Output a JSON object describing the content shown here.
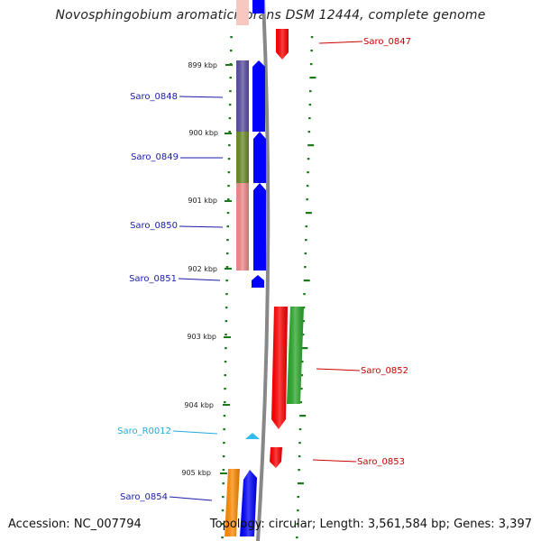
{
  "title": "Novosphingobium aromaticivorans DSM 12444, complete genome",
  "footer": {
    "accession": "Accession: NC_007794",
    "topology": "Topology: circular; Length: 3,561,584 bp; Genes: 3,397"
  },
  "colors": {
    "tick": "#1a7a1a",
    "label_blue": "#1a1aaa",
    "label_red": "#cc0000",
    "label_cyan": "#22aadd",
    "backbone": "#888888"
  },
  "scale": {
    "ticks": [
      "899 kbp",
      "900 kbp",
      "901 kbp",
      "902 kbp",
      "903 kbp",
      "904 kbp",
      "905 kbp"
    ]
  },
  "genes": [
    {
      "name": "Saro_0847",
      "strand": "+",
      "color": "#ff0000",
      "label_color": "#cc0000"
    },
    {
      "name": "Saro_0848",
      "strand": "-",
      "color": "#5b4fa0",
      "label_color": "#1a1aaa"
    },
    {
      "name": "Saro_0849",
      "strand": "-",
      "color": "#6e8a2a",
      "label_color": "#1a1aaa"
    },
    {
      "name": "Saro_0850",
      "strand": "-",
      "color": "#f08a8a",
      "label_color": "#1a1aaa"
    },
    {
      "name": "Saro_0851",
      "strand": "-",
      "color": "#0000ff",
      "label_color": "#1a1aaa"
    },
    {
      "name": "Saro_0852",
      "strand": "+",
      "color": "#ff0000",
      "label_color": "#cc0000"
    },
    {
      "name": "Saro_R0012",
      "strand": "-",
      "color": "#33bbee",
      "label_color": "#22aadd"
    },
    {
      "name": "Saro_0853",
      "strand": "+",
      "color": "#ff0000",
      "label_color": "#cc0000"
    },
    {
      "name": "Saro_0854",
      "strand": "-",
      "color": "#ff8c00",
      "label_color": "#1a1aaa"
    }
  ]
}
